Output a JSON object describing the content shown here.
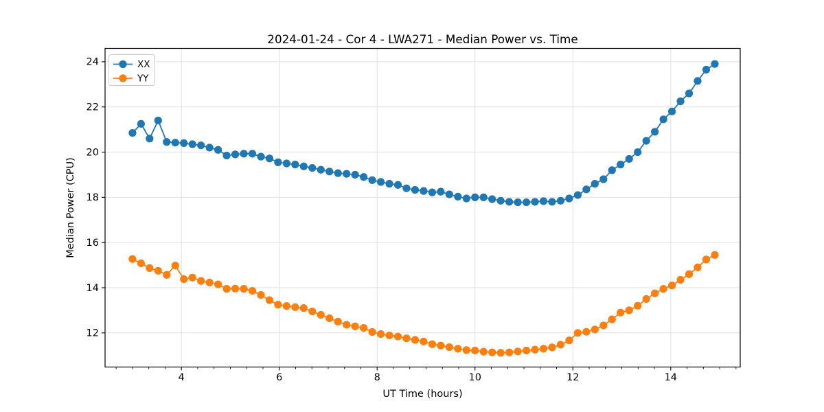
{
  "figure": {
    "background_color": "#ffffff",
    "spine_color": "#000000",
    "text_color": "#000000"
  },
  "chart_data": {
    "type": "line",
    "title": "2024-01-24 - Cor 4 - LWA271 - Median Power vs. Time",
    "xlabel": "UT Time (hours)",
    "ylabel": "Median Power (CPU)",
    "xlim": [
      2.44,
      15.42
    ],
    "ylim": [
      10.49,
      24.59
    ],
    "x_ticks": [
      4,
      6,
      8,
      10,
      12,
      14
    ],
    "x_minor_tick_step": 0.3333,
    "y_ticks": [
      12,
      14,
      16,
      18,
      20,
      22,
      24
    ],
    "grid": "major-both",
    "grid_color": "#e0e0e0",
    "legend_position": "upper-left",
    "marker": "circle",
    "x": [
      3.0,
      3.175,
      3.35,
      3.525,
      3.7,
      3.875,
      4.05,
      4.225,
      4.4,
      4.575,
      4.75,
      4.925,
      5.1,
      5.275,
      5.45,
      5.625,
      5.8,
      5.975,
      6.15,
      6.325,
      6.5,
      6.675,
      6.85,
      7.025,
      7.2,
      7.375,
      7.55,
      7.725,
      7.9,
      8.075,
      8.25,
      8.425,
      8.6,
      8.775,
      8.95,
      9.125,
      9.3,
      9.475,
      9.65,
      9.825,
      10.0,
      10.175,
      10.35,
      10.525,
      10.7,
      10.875,
      11.05,
      11.225,
      11.4,
      11.575,
      11.75,
      11.925,
      12.1,
      12.275,
      12.45,
      12.625,
      12.8,
      12.975,
      13.15,
      13.325,
      13.5,
      13.675,
      13.85,
      14.025,
      14.2,
      14.375,
      14.55,
      14.725,
      14.9
    ],
    "series": [
      {
        "name": "XX",
        "color": "#1f77b4",
        "values": [
          20.85,
          21.25,
          20.6,
          21.4,
          20.45,
          20.42,
          20.4,
          20.35,
          20.3,
          20.2,
          20.1,
          19.85,
          19.9,
          19.93,
          19.93,
          19.8,
          19.72,
          19.55,
          19.5,
          19.45,
          19.37,
          19.3,
          19.22,
          19.14,
          19.07,
          19.04,
          19.0,
          18.9,
          18.76,
          18.68,
          18.6,
          18.55,
          18.4,
          18.33,
          18.28,
          18.22,
          18.25,
          18.13,
          18.03,
          17.95,
          18.0,
          18.0,
          17.92,
          17.85,
          17.8,
          17.78,
          17.78,
          17.8,
          17.83,
          17.8,
          17.85,
          17.95,
          18.1,
          18.35,
          18.6,
          18.8,
          19.2,
          19.45,
          19.7,
          20.0,
          20.5,
          20.9,
          21.45,
          21.8,
          22.25,
          22.6,
          23.15,
          23.65,
          23.9
        ]
      },
      {
        "name": "YY",
        "color": "#ff7f0e",
        "values": [
          15.27,
          15.08,
          14.87,
          14.75,
          14.57,
          14.98,
          14.38,
          14.45,
          14.3,
          14.23,
          14.15,
          13.95,
          13.96,
          13.95,
          13.86,
          13.68,
          13.45,
          13.25,
          13.19,
          13.14,
          13.1,
          12.95,
          12.8,
          12.65,
          12.5,
          12.36,
          12.29,
          12.22,
          12.04,
          11.95,
          11.89,
          11.84,
          11.76,
          11.69,
          11.62,
          11.5,
          11.44,
          11.37,
          11.3,
          11.24,
          11.22,
          11.17,
          11.14,
          11.12,
          11.14,
          11.18,
          11.22,
          11.26,
          11.3,
          11.36,
          11.48,
          11.67,
          12.0,
          12.05,
          12.15,
          12.33,
          12.6,
          12.9,
          13.0,
          13.2,
          13.5,
          13.75,
          13.95,
          14.1,
          14.35,
          14.6,
          14.9,
          15.25,
          15.45
        ]
      }
    ]
  }
}
